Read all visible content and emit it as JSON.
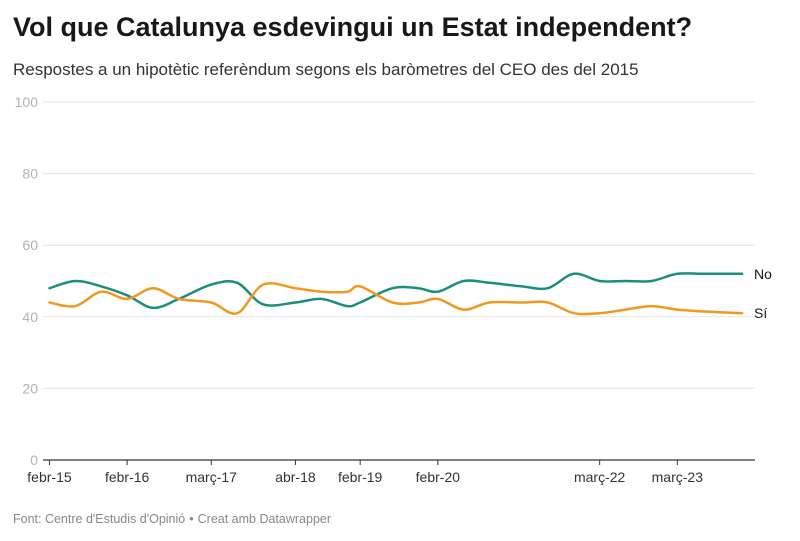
{
  "title": "Vol que Catalunya esdevingui un Estat independent?",
  "subtitle": "Respostes a un hipotètic referèndum segons els baròmetres del CEO des del 2015",
  "footer": {
    "source": "Font: Centre d'Estudis d'Opinió",
    "separator": "•",
    "credit": "Creat amb Datawrapper"
  },
  "colors": {
    "no": "#1b8f7d",
    "si": "#f0981f",
    "grid": "#e6e6e6",
    "axis": "#333333"
  },
  "chart_data": {
    "type": "line",
    "title": "Vol que Catalunya esdevingui un Estat independent?",
    "subtitle": "Respostes a un hipotètic referèndum segons els baròmetres del CEO des del 2015",
    "ylim": [
      0,
      100
    ],
    "yticks": [
      0,
      20,
      40,
      60,
      80,
      100
    ],
    "xlim": [
      "2015-01",
      "2024-03"
    ],
    "xticks": [
      {
        "date": "2015-02",
        "label": "febr-15"
      },
      {
        "date": "2016-02",
        "label": "febr-16"
      },
      {
        "date": "2017-03",
        "label": "març-17"
      },
      {
        "date": "2018-04",
        "label": "abr-18"
      },
      {
        "date": "2019-02",
        "label": "febr-19"
      },
      {
        "date": "2020-02",
        "label": "febr-20"
      },
      {
        "date": "2022-03",
        "label": "març-22"
      },
      {
        "date": "2023-03",
        "label": "març-23"
      }
    ],
    "grid": true,
    "series": [
      {
        "name": "No",
        "color": "#1b8f7d",
        "points": [
          [
            "2015-02",
            48.0
          ],
          [
            "2015-06",
            50.0
          ],
          [
            "2015-10",
            48.5
          ],
          [
            "2016-02",
            46.0
          ],
          [
            "2016-06",
            42.5
          ],
          [
            "2016-10",
            45.0
          ],
          [
            "2017-03",
            49.0
          ],
          [
            "2017-07",
            49.5
          ],
          [
            "2017-11",
            43.5
          ],
          [
            "2018-04",
            44.0
          ],
          [
            "2018-08",
            45.0
          ],
          [
            "2018-12",
            43.0
          ],
          [
            "2019-02",
            44.0
          ],
          [
            "2019-07",
            48.0
          ],
          [
            "2019-11",
            48.0
          ],
          [
            "2020-02",
            47.0
          ],
          [
            "2020-06",
            50.0
          ],
          [
            "2020-10",
            49.5
          ],
          [
            "2021-03",
            48.5
          ],
          [
            "2021-07",
            48.0
          ],
          [
            "2021-11",
            52.0
          ],
          [
            "2022-03",
            50.0
          ],
          [
            "2022-07",
            50.0
          ],
          [
            "2022-11",
            50.0
          ],
          [
            "2023-03",
            52.0
          ],
          [
            "2023-07",
            52.0
          ],
          [
            "2024-01",
            52.0
          ]
        ]
      },
      {
        "name": "Sí",
        "color": "#f0981f",
        "points": [
          [
            "2015-02",
            44.0
          ],
          [
            "2015-06",
            43.0
          ],
          [
            "2015-10",
            47.0
          ],
          [
            "2016-02",
            45.0
          ],
          [
            "2016-06",
            48.0
          ],
          [
            "2016-10",
            45.0
          ],
          [
            "2017-03",
            44.0
          ],
          [
            "2017-07",
            41.0
          ],
          [
            "2017-11",
            49.0
          ],
          [
            "2018-04",
            48.0
          ],
          [
            "2018-08",
            47.0
          ],
          [
            "2018-12",
            47.0
          ],
          [
            "2019-02",
            48.5
          ],
          [
            "2019-07",
            44.0
          ],
          [
            "2019-11",
            44.0
          ],
          [
            "2020-02",
            45.0
          ],
          [
            "2020-06",
            42.0
          ],
          [
            "2020-10",
            44.0
          ],
          [
            "2021-03",
            44.0
          ],
          [
            "2021-07",
            44.0
          ],
          [
            "2021-11",
            41.0
          ],
          [
            "2022-03",
            41.0
          ],
          [
            "2022-07",
            42.0
          ],
          [
            "2022-11",
            43.0
          ],
          [
            "2023-03",
            42.0
          ],
          [
            "2023-07",
            41.5
          ],
          [
            "2024-01",
            41.0
          ]
        ]
      }
    ]
  }
}
